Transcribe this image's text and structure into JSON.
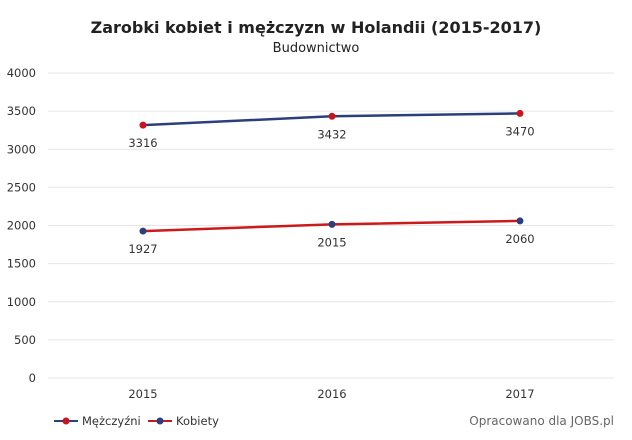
{
  "chart_data": {
    "type": "line",
    "title": "Zarobki kobiet i mężczyzn w Holandii (2015-2017)",
    "subtitle": "Budownictwo",
    "x": [
      "2015",
      "2016",
      "2017"
    ],
    "yticks": [
      "0",
      "500",
      "1000",
      "1500",
      "2000",
      "2500",
      "3000",
      "3500",
      "4000"
    ],
    "ylim": [
      0,
      4000
    ],
    "grid": true,
    "legend_position": "bottom-left",
    "series": [
      {
        "name": "Mężczyźni",
        "values": [
          3316,
          3432,
          3470
        ],
        "labels": [
          "3316",
          "3432",
          "3470"
        ],
        "line_color": "#2b3f7f",
        "marker_color": "#c9141e"
      },
      {
        "name": "Kobiety",
        "values": [
          1927,
          2015,
          2060
        ],
        "labels": [
          "1927",
          "2015",
          "2060"
        ],
        "line_color": "#cc1a1a",
        "marker_color": "#2b3f7f"
      }
    ]
  },
  "credit": "Opracowano dla JOBS.pl"
}
